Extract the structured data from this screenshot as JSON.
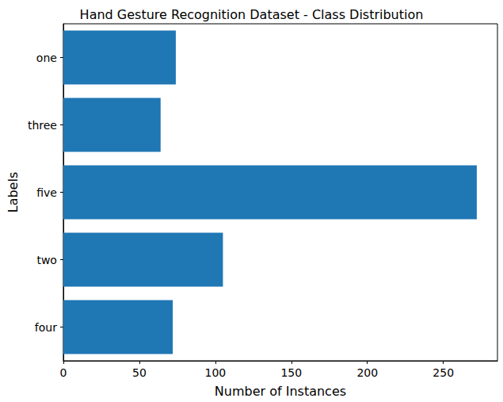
{
  "chart_data": {
    "type": "bar",
    "orientation": "horizontal",
    "title": "Hand Gesture Recognition Dataset - Class Distribution",
    "x_label": "Number of Instances",
    "y_label": "Labels",
    "categories": [
      "one",
      "three",
      "five",
      "two",
      "four"
    ],
    "values": [
      74,
      64,
      272,
      105,
      72
    ],
    "color": "#1f77b4",
    "xlim": [
      0,
      285.6
    ],
    "xticks": [
      0,
      50,
      100,
      150,
      200,
      250
    ],
    "grid": false
  }
}
